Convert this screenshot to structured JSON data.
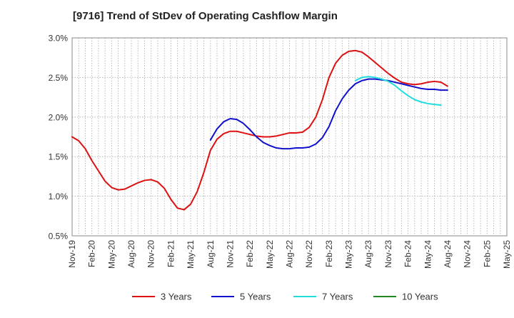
{
  "chart_data": {
    "type": "line",
    "title": "[9716]  Trend of StDev of Operating Cashflow Margin",
    "xlabel": "",
    "ylabel": "",
    "ylim": [
      0.5,
      3.0
    ],
    "yticks": [
      0.5,
      1.0,
      1.5,
      2.0,
      2.5,
      3.0
    ],
    "ytick_labels": [
      "0.5%",
      "1.0%",
      "1.5%",
      "2.0%",
      "2.5%",
      "3.0%"
    ],
    "x_range": [
      "2019-11",
      "2025-05"
    ],
    "xticks": [
      "Nov-19",
      "Feb-20",
      "May-20",
      "Aug-20",
      "Nov-20",
      "Feb-21",
      "May-21",
      "Aug-21",
      "Nov-21",
      "Feb-22",
      "May-22",
      "Aug-22",
      "Nov-22",
      "Feb-23",
      "May-23",
      "Aug-23",
      "Nov-23",
      "Feb-24",
      "May-24",
      "Aug-24",
      "Nov-24",
      "Feb-25",
      "May-25"
    ],
    "grid": true,
    "legend_position": "bottom",
    "series": [
      {
        "name": "3 Years",
        "color": "#dd1111",
        "start": "2019-11",
        "values": [
          1.75,
          1.7,
          1.6,
          1.45,
          1.32,
          1.19,
          1.11,
          1.08,
          1.09,
          1.13,
          1.17,
          1.2,
          1.21,
          1.18,
          1.1,
          0.96,
          0.85,
          0.83,
          0.9,
          1.06,
          1.3,
          1.58,
          1.72,
          1.79,
          1.82,
          1.82,
          1.8,
          1.78,
          1.76,
          1.75,
          1.75,
          1.76,
          1.78,
          1.8,
          1.8,
          1.81,
          1.87,
          2.0,
          2.22,
          2.5,
          2.68,
          2.78,
          2.83,
          2.84,
          2.82,
          2.76,
          2.69,
          2.62,
          2.55,
          2.49,
          2.44,
          2.42,
          2.41,
          2.42,
          2.44,
          2.45,
          2.44,
          2.39
        ]
      },
      {
        "name": "5 Years",
        "color": "#1111cc",
        "start": "2021-08",
        "values": [
          1.71,
          1.85,
          1.94,
          1.98,
          1.97,
          1.92,
          1.84,
          1.75,
          1.68,
          1.64,
          1.61,
          1.6,
          1.6,
          1.61,
          1.61,
          1.62,
          1.66,
          1.74,
          1.88,
          2.08,
          2.23,
          2.34,
          2.42,
          2.46,
          2.48,
          2.48,
          2.47,
          2.46,
          2.44,
          2.42,
          2.4,
          2.38,
          2.36,
          2.35,
          2.35,
          2.34,
          2.34
        ]
      },
      {
        "name": "7 Years",
        "color": "#22dddd",
        "start": "2023-06",
        "values": [
          2.46,
          2.5,
          2.51,
          2.5,
          2.48,
          2.45,
          2.4,
          2.33,
          2.27,
          2.22,
          2.19,
          2.17,
          2.16,
          2.15
        ]
      },
      {
        "name": "10 Years",
        "color": "#228822",
        "start": "2023-06",
        "values": []
      }
    ]
  }
}
